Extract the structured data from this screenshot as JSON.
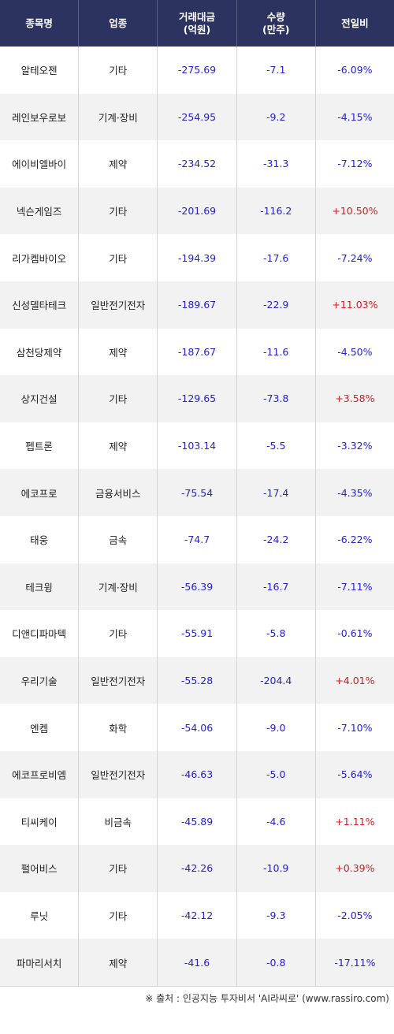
{
  "header": {
    "col_name": "종목명",
    "col_sector": "업종",
    "col_amount": "거래대금\n(억원)",
    "col_qty": "수량\n(만주)",
    "col_change": "전일비"
  },
  "rows": [
    {
      "name": "알테오젠",
      "sector": "기타",
      "amount": "-275.69",
      "qty": "-7.1",
      "change": "-6.09%",
      "dir": "neg"
    },
    {
      "name": "레인보우로보",
      "sector": "기계·장비",
      "amount": "-254.95",
      "qty": "-9.2",
      "change": "-4.15%",
      "dir": "neg"
    },
    {
      "name": "에이비엘바이",
      "sector": "제약",
      "amount": "-234.52",
      "qty": "-31.3",
      "change": "-7.12%",
      "dir": "neg"
    },
    {
      "name": "넥슨게임즈",
      "sector": "기타",
      "amount": "-201.69",
      "qty": "-116.2",
      "change": "+10.50%",
      "dir": "pos"
    },
    {
      "name": "리가켐바이오",
      "sector": "기타",
      "amount": "-194.39",
      "qty": "-17.6",
      "change": "-7.24%",
      "dir": "neg"
    },
    {
      "name": "신성델타테크",
      "sector": "일반전기전자",
      "amount": "-189.67",
      "qty": "-22.9",
      "change": "+11.03%",
      "dir": "pos"
    },
    {
      "name": "삼천당제약",
      "sector": "제약",
      "amount": "-187.67",
      "qty": "-11.6",
      "change": "-4.50%",
      "dir": "neg"
    },
    {
      "name": "상지건설",
      "sector": "기타",
      "amount": "-129.65",
      "qty": "-73.8",
      "change": "+3.58%",
      "dir": "pos"
    },
    {
      "name": "펩트론",
      "sector": "제약",
      "amount": "-103.14",
      "qty": "-5.5",
      "change": "-3.32%",
      "dir": "neg"
    },
    {
      "name": "에코프로",
      "sector": "금융서비스",
      "amount": "-75.54",
      "qty": "-17.4",
      "change": "-4.35%",
      "dir": "neg"
    },
    {
      "name": "태웅",
      "sector": "금속",
      "amount": "-74.7",
      "qty": "-24.2",
      "change": "-6.22%",
      "dir": "neg"
    },
    {
      "name": "테크윙",
      "sector": "기계·장비",
      "amount": "-56.39",
      "qty": "-16.7",
      "change": "-7.11%",
      "dir": "neg"
    },
    {
      "name": "디앤디파마텍",
      "sector": "기타",
      "amount": "-55.91",
      "qty": "-5.8",
      "change": "-0.61%",
      "dir": "neg"
    },
    {
      "name": "우리기술",
      "sector": "일반전기전자",
      "amount": "-55.28",
      "qty": "-204.4",
      "change": "+4.01%",
      "dir": "pos"
    },
    {
      "name": "엔켐",
      "sector": "화학",
      "amount": "-54.06",
      "qty": "-9.0",
      "change": "-7.10%",
      "dir": "neg"
    },
    {
      "name": "에코프로비엠",
      "sector": "일반전기전자",
      "amount": "-46.63",
      "qty": "-5.0",
      "change": "-5.64%",
      "dir": "neg"
    },
    {
      "name": "티씨케이",
      "sector": "비금속",
      "amount": "-45.89",
      "qty": "-4.6",
      "change": "+1.11%",
      "dir": "pos"
    },
    {
      "name": "펄어비스",
      "sector": "기타",
      "amount": "-42.26",
      "qty": "-10.9",
      "change": "+0.39%",
      "dir": "pos"
    },
    {
      "name": "루닛",
      "sector": "기타",
      "amount": "-42.12",
      "qty": "-9.3",
      "change": "-2.05%",
      "dir": "neg"
    },
    {
      "name": "파마리서치",
      "sector": "제약",
      "amount": "-41.6",
      "qty": "-0.8",
      "change": "-17.11%",
      "dir": "neg"
    }
  ],
  "colors": {
    "header_bg": "#2c3360",
    "negative": "#2323c8",
    "positive": "#e01818",
    "alt_row": "#f2f2f2"
  },
  "footer": "※ 출처 : 인공지능 투자비서 'AI라씨로' (www.rassiro.com)"
}
